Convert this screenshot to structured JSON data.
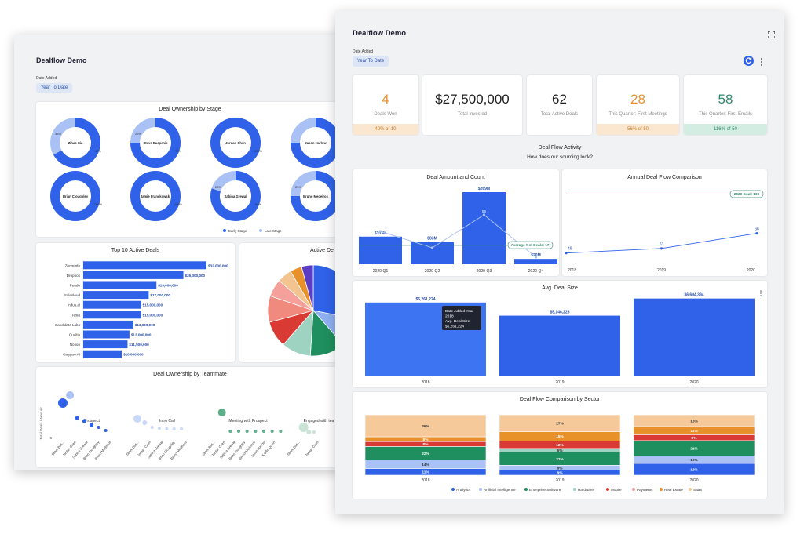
{
  "colors": {
    "blue": "#2f62e8",
    "light_blue": "#a9c1f5",
    "orange": "#e8902a",
    "green": "#2e8b6a",
    "peach": "#fbe6cf",
    "mint": "#d3ede2"
  },
  "back": {
    "title": "Dealflow Demo",
    "date_label": "Date Added",
    "date_chip": "Year To Date",
    "ownership": {
      "title": "Deal Ownership by Stage",
      "donuts": [
        {
          "name": "Zihao Xia",
          "early": 67,
          "late": 33,
          "early_label": "67%",
          "late_label": "33%"
        },
        {
          "name": "Steve Baspenis",
          "early": 75,
          "late": 25,
          "early_label": "75%",
          "late_label": "25%"
        },
        {
          "name": "Jordan Chen",
          "early": 100,
          "late": 0,
          "early_label": "100%",
          "late_label": ""
        },
        {
          "name": "Jason Harlow",
          "early": 75,
          "late": 25,
          "early_label": "",
          "late_label": ""
        },
        {
          "name": "Brian Cloughley",
          "early": 100,
          "late": 0,
          "early_label": "100%",
          "late_label": ""
        },
        {
          "name": "Jamie Franckowski",
          "early": 100,
          "late": 0,
          "early_label": "100%",
          "late_label": ""
        },
        {
          "name": "Sabina Grewal",
          "early": 80,
          "late": 20,
          "early_label": "80%",
          "late_label": "20%"
        },
        {
          "name": "Bruno Medeiros",
          "early": 75,
          "late": 25,
          "early_label": "",
          "late_label": "25%"
        }
      ],
      "legend": [
        "Early Stage",
        "Late Stage"
      ]
    },
    "top10": {
      "title": "Top 10 Active Deals",
      "max": 32000000,
      "rows": [
        {
          "name": "ZoomInfo",
          "value": 32000000,
          "label": "$32,000,000"
        },
        {
          "name": "Dropbox",
          "value": 26000000,
          "label": "$26,000,000"
        },
        {
          "name": "Pendo",
          "value": 19000000,
          "label": "$19,000,000"
        },
        {
          "name": "Salesloud",
          "value": 17000000,
          "label": "$17,000,000"
        },
        {
          "name": "Indus.ai",
          "value": 15000000,
          "label": "$15,000,000"
        },
        {
          "name": "Tesla",
          "value": 15000000,
          "label": "$15,000,000"
        },
        {
          "name": "Candidate Labs",
          "value": 13000000,
          "label": "$13,000,000"
        },
        {
          "name": "Qualtis",
          "value": 12000000,
          "label": "$12,000,000"
        },
        {
          "name": "Notion",
          "value": 11500000,
          "label": "$11,500,000"
        },
        {
          "name": "Calypso AI",
          "value": 10000000,
          "label": "$10,000,000"
        }
      ]
    },
    "active_pie": {
      "title": "Active De",
      "slices": [
        {
          "value": 27,
          "color": "#2f62e8"
        },
        {
          "value": 10,
          "color": "#8fb0f0"
        },
        {
          "value": 12,
          "color": "#1f8f5f"
        },
        {
          "value": 10,
          "color": "#9ed3c1"
        },
        {
          "value": 9,
          "color": "#d93b34"
        },
        {
          "value": 9,
          "color": "#f08a7e"
        },
        {
          "value": 6,
          "color": "#f5a09a"
        },
        {
          "value": 5,
          "color": "#f3c48f"
        },
        {
          "value": 4,
          "color": "#e8902a"
        },
        {
          "value": 4,
          "color": "#5b3cc4"
        }
      ]
    },
    "teammate": {
      "title": "Deal Ownership by Teammate",
      "ylabel": "Total Deals / Amount",
      "panels": [
        {
          "title": "Prospect",
          "names": [
            "Steve Bas...",
            "Jordan Chen",
            "Sabina Grewal",
            "Brian Cloughley",
            "Bruno Medeiros"
          ]
        },
        {
          "title": "Intro Call",
          "names": [
            "Steve Bas...",
            "Jordan Chen",
            "Sabina Grewal",
            "Brian Cloughley",
            "Bruno Medeiros"
          ]
        },
        {
          "title": "Meeting with Prospect",
          "names": [
            "Steve Bas...",
            "Jordan Chen",
            "Sabina Grewal",
            "Brian Cloughley",
            "Bruno Medeiros",
            "Jason Harlow",
            "Kaitlin Quinn"
          ]
        },
        {
          "title": "Engaged with tea",
          "names": [
            "Steve Bas...",
            "Jordan Chen"
          ]
        }
      ],
      "yticks": [
        "5",
        "0"
      ]
    }
  },
  "front": {
    "title": "Dealflow Demo",
    "date_label": "Date Added",
    "date_chip": "Year To Date",
    "icons": {
      "expand": "expand-icon",
      "refresh": "refresh-icon",
      "more": "more-vert-icon"
    },
    "kpis": [
      {
        "value": "4",
        "label": "Deals Won",
        "footer": "40% of 10",
        "value_color": "#e8902a",
        "footer_bg": "#fbe6cf",
        "footer_color": "#c77d2a"
      },
      {
        "value": "$27,500,000",
        "label": "Total Invested",
        "footer": "",
        "value_color": "#222222",
        "footer_bg": "#ffffff",
        "footer_color": "#222222"
      },
      {
        "value": "62",
        "label": "Total Active Deals",
        "footer": "",
        "value_color": "#222222",
        "footer_bg": "#ffffff",
        "footer_color": "#222222"
      },
      {
        "value": "28",
        "label": "This Quarter: First Meetings",
        "footer": "56% of 50",
        "value_color": "#e8902a",
        "footer_bg": "#fbe6cf",
        "footer_color": "#c77d2a"
      },
      {
        "value": "58",
        "label": "This Quarter: First Emails",
        "footer": "116% of 50",
        "value_color": "#2e8b6a",
        "footer_bg": "#d3ede2",
        "footer_color": "#2e8b6a"
      }
    ],
    "section_title": "Deal Flow Activity",
    "section_subtitle": "How does our sourcing look?",
    "amount_count": {
      "title": "Deal Amount and Count",
      "categories": [
        "2020-Q1",
        "2020-Q2",
        "2020-Q3",
        "2020-Q4"
      ],
      "amounts": [
        103,
        83,
        269,
        20
      ],
      "amount_labels": [
        "$103M",
        "$83M",
        "$269M",
        "$20M"
      ],
      "counts": [
        16,
        null,
        56,
        null
      ],
      "count_labels": [
        "16",
        "",
        "56",
        ""
      ],
      "average_label": "Average # of Deals: 17",
      "ymax": 269
    },
    "annual": {
      "title": "Annual Deal Flow Comparison",
      "x": [
        "2018",
        "2019",
        "2020"
      ],
      "values": [
        49,
        53,
        66
      ],
      "labels": [
        "49",
        "53",
        "66"
      ],
      "goal": 100,
      "goal_label": "2020 Goal: 100",
      "ylim": [
        40,
        105
      ]
    },
    "avg_deal": {
      "title": "Avg. Deal Size",
      "categories": [
        "2018",
        "2019",
        "2020"
      ],
      "values": [
        6261224,
        5146226,
        6604394
      ],
      "labels": [
        "$6,261,224",
        "$5,146,226",
        "$6,604,394"
      ],
      "tooltip": [
        "Date Added Year",
        "2018",
        "Avg. Deal Size",
        "$6,261,224"
      ]
    },
    "sector": {
      "title": "Deal Flow Comparison by Sector",
      "categories": [
        "2018",
        "2019",
        "2020"
      ],
      "series": [
        {
          "name": "Analytics",
          "color": "#2f62e8",
          "values": [
            11,
            8,
            16
          ]
        },
        {
          "name": "Artificial Intelligence",
          "color": "#a9c1f5",
          "values": [
            14,
            8,
            10
          ]
        },
        {
          "name": "Enterprise Software",
          "color": "#1f8f5f",
          "values": [
            22,
            21,
            21
          ]
        },
        {
          "name": "Hardware",
          "color": "#9ed3c1",
          "values": [
            0,
            6,
            0
          ]
        },
        {
          "name": "Mobile",
          "color": "#d93b34",
          "values": [
            8,
            12,
            8
          ]
        },
        {
          "name": "Payments",
          "color": "#f5a09a",
          "values": [
            0,
            0,
            0
          ]
        },
        {
          "name": "Real Estate",
          "color": "#e8902a",
          "values": [
            8,
            15,
            11
          ]
        },
        {
          "name": "SaaS",
          "color": "#f6c99a",
          "values": [
            36,
            27,
            16
          ]
        }
      ],
      "labels": [
        [
          "11%",
          "14%",
          "22%",
          "",
          "8%",
          "",
          "8%",
          "36%"
        ],
        [
          "8%",
          "8%",
          "21%",
          "6%",
          "12%",
          "",
          "15%",
          "27%"
        ],
        [
          "16%",
          "10%",
          "21%",
          "",
          "8%",
          "",
          "11%",
          "16%"
        ]
      ]
    }
  }
}
